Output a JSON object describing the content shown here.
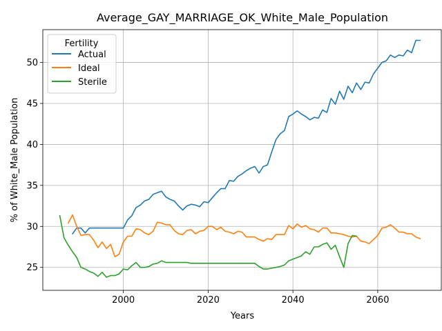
{
  "chart_data": {
    "type": "line",
    "title": "Average_GAY_MARRIAGE_OK_White_Male_Population",
    "xlabel": "Years",
    "ylabel": "% of White_Male Population",
    "xlim": [
      1981,
      2075
    ],
    "ylim": [
      22.2,
      54.0
    ],
    "xticks": [
      2000,
      2020,
      2040,
      2060
    ],
    "yticks": [
      25,
      30,
      35,
      40,
      45,
      50
    ],
    "grid": true,
    "legend": {
      "title": "Fertility",
      "placement": "top-left"
    },
    "series": [
      {
        "name": "Actual",
        "color": "#1f77b4",
        "x": [
          1988,
          1989,
          1990,
          1991,
          1992,
          1993,
          1994,
          1995,
          1996,
          1997,
          1998,
          1999,
          2000,
          2001,
          2002,
          2003,
          2004,
          2005,
          2006,
          2007,
          2008,
          2009,
          2010,
          2011,
          2012,
          2013,
          2014,
          2015,
          2016,
          2017,
          2018,
          2019,
          2020,
          2021,
          2022,
          2023,
          2024,
          2025,
          2026,
          2027,
          2028,
          2029,
          2030,
          2031,
          2032,
          2033,
          2034,
          2035,
          2036,
          2037,
          2038,
          2039,
          2040,
          2041,
          2042,
          2043,
          2044,
          2045,
          2046,
          2047,
          2048,
          2049,
          2050,
          2051,
          2052,
          2053,
          2054,
          2055,
          2056,
          2057,
          2058,
          2059,
          2060,
          2061,
          2062,
          2063,
          2064,
          2065,
          2066,
          2067,
          2068,
          2069,
          2070
        ],
        "values": [
          29.1,
          29.8,
          29.8,
          29.2,
          29.8,
          29.8,
          29.8,
          29.8,
          29.8,
          29.8,
          29.8,
          29.8,
          29.8,
          30.8,
          31.3,
          32.3,
          32.6,
          33.1,
          33.3,
          33.9,
          34.1,
          34.3,
          33.6,
          33.3,
          33.1,
          32.5,
          32.0,
          32.5,
          32.7,
          32.6,
          32.4,
          33.0,
          32.9,
          33.5,
          34.1,
          34.6,
          34.6,
          35.6,
          35.5,
          36.1,
          36.4,
          36.8,
          37.1,
          37.3,
          36.5,
          37.3,
          37.5,
          39.1,
          40.6,
          41.3,
          41.7,
          43.4,
          43.7,
          44.1,
          43.7,
          43.4,
          43.0,
          43.3,
          43.2,
          44.2,
          43.9,
          45.6,
          44.9,
          46.5,
          45.5,
          47.1,
          46.3,
          47.5,
          46.7,
          47.6,
          47.5,
          48.6,
          49.3,
          50.0,
          50.2,
          50.9,
          50.6,
          50.9,
          50.8,
          51.5,
          51.2,
          52.7,
          52.7
        ]
      },
      {
        "name": "Ideal",
        "color": "#ff7f0e",
        "x": [
          1987,
          1988,
          1989,
          1990,
          1991,
          1992,
          1993,
          1994,
          1995,
          1996,
          1997,
          1998,
          1999,
          2000,
          2001,
          2002,
          2003,
          2004,
          2005,
          2006,
          2007,
          2008,
          2009,
          2010,
          2011,
          2012,
          2013,
          2014,
          2015,
          2016,
          2017,
          2018,
          2019,
          2020,
          2021,
          2022,
          2023,
          2024,
          2025,
          2026,
          2027,
          2028,
          2029,
          2030,
          2031,
          2032,
          2033,
          2034,
          2035,
          2036,
          2037,
          2038,
          2039,
          2040,
          2041,
          2042,
          2043,
          2044,
          2045,
          2046,
          2047,
          2048,
          2049,
          2050,
          2051,
          2052,
          2053,
          2054,
          2055,
          2056,
          2057,
          2058,
          2059,
          2060,
          2061,
          2062,
          2063,
          2064,
          2065,
          2066,
          2067,
          2068,
          2069,
          2070
        ],
        "values": [
          30.4,
          31.4,
          30.0,
          28.9,
          29.0,
          29.0,
          28.3,
          27.4,
          28.1,
          27.3,
          27.8,
          26.3,
          26.6,
          28.1,
          28.8,
          28.8,
          29.7,
          29.6,
          29.2,
          29.0,
          29.4,
          30.5,
          30.4,
          30.2,
          30.2,
          29.5,
          29.1,
          29.0,
          29.5,
          29.6,
          29.1,
          29.4,
          29.5,
          30.0,
          30.0,
          29.6,
          29.9,
          29.4,
          29.3,
          29.1,
          29.4,
          29.3,
          28.7,
          28.7,
          28.7,
          28.4,
          28.2,
          28.5,
          28.4,
          29.0,
          29.0,
          29.0,
          30.1,
          29.7,
          30.3,
          29.9,
          30.1,
          29.7,
          29.6,
          29.3,
          29.8,
          29.8,
          29.2,
          29.2,
          29.1,
          29.0,
          28.8,
          28.7,
          28.8,
          28.2,
          28.1,
          27.9,
          28.4,
          28.9,
          29.8,
          29.9,
          30.2,
          29.8,
          29.3,
          29.3,
          29.1,
          29.1,
          28.7,
          28.5
        ]
      },
      {
        "name": "Sterile",
        "color": "#2ca02c",
        "x": [
          1985,
          1986,
          1987,
          1988,
          1989,
          1990,
          1991,
          1992,
          1993,
          1994,
          1995,
          1996,
          1997,
          1998,
          1999,
          2000,
          2001,
          2002,
          2003,
          2004,
          2005,
          2006,
          2007,
          2008,
          2009,
          2010,
          2011,
          2012,
          2013,
          2014,
          2015,
          2016,
          2017,
          2018,
          2019,
          2020,
          2021,
          2022,
          2023,
          2024,
          2025,
          2026,
          2027,
          2028,
          2029,
          2030,
          2031,
          2032,
          2033,
          2034,
          2035,
          2036,
          2037,
          2038,
          2039,
          2040,
          2041,
          2042,
          2043,
          2044,
          2045,
          2046,
          2047,
          2048,
          2049,
          2050,
          2051,
          2052,
          2053,
          2054,
          2055
        ],
        "values": [
          31.3,
          28.6,
          27.7,
          26.9,
          26.2,
          25.0,
          24.8,
          24.5,
          24.3,
          23.9,
          24.4,
          23.8,
          24.0,
          24.0,
          24.2,
          24.8,
          24.7,
          25.2,
          25.6,
          25.0,
          25.0,
          25.1,
          25.4,
          25.5,
          25.8,
          25.6,
          25.6,
          25.6,
          25.6,
          25.6,
          25.6,
          25.5,
          25.5,
          25.5,
          25.5,
          25.5,
          25.5,
          25.5,
          25.5,
          25.5,
          25.5,
          25.5,
          25.5,
          25.5,
          25.5,
          25.5,
          25.5,
          25.1,
          24.8,
          24.8,
          24.9,
          25.0,
          25.1,
          25.3,
          25.8,
          26.0,
          26.2,
          26.4,
          26.9,
          26.6,
          27.5,
          27.5,
          27.8,
          28.0,
          27.2,
          27.7,
          26.3,
          25.0,
          27.9,
          28.9,
          28.8
        ]
      }
    ]
  }
}
